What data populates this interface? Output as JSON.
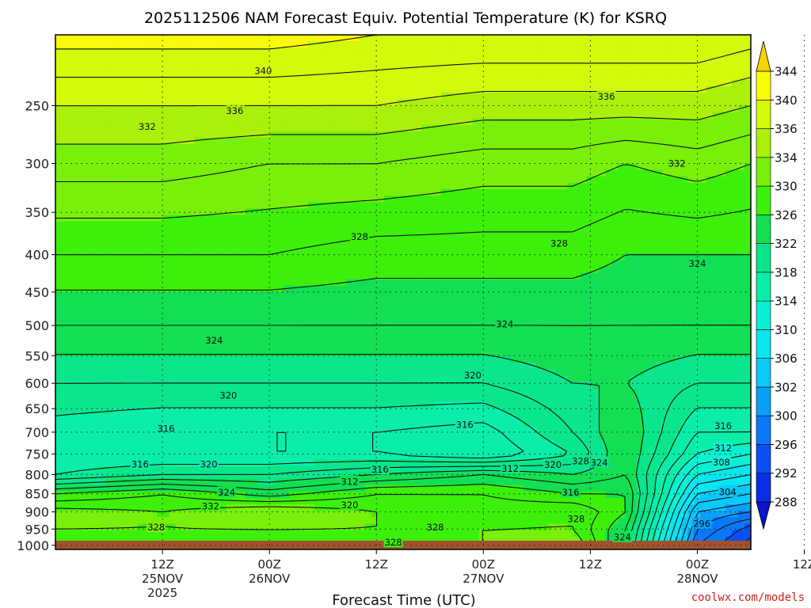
{
  "colors": {
    "ground": "#a0522d",
    "watermark": "#cc2222",
    "contour": "#111111"
  },
  "watermark": "coolwx.com/models",
  "chart_data": {
    "type": "heatmap",
    "title": "2025112506 NAM Forecast Equiv. Potential Temperature (K) for KSRQ",
    "xlabel": "Forecast Time (UTC)",
    "ylabel": "",
    "y_axis": {
      "range": [
        200,
        1013
      ],
      "inverted": true,
      "ticks": [
        250,
        300,
        350,
        400,
        450,
        500,
        550,
        600,
        650,
        700,
        750,
        800,
        850,
        900,
        950,
        1000
      ]
    },
    "x_axis": {
      "range_hours": [
        -6,
        72
      ],
      "ticks": [
        {
          "hour": 6,
          "lines": [
            "12Z",
            "25NOV",
            "2025"
          ]
        },
        {
          "hour": 18,
          "lines": [
            "00Z",
            "26NOV"
          ]
        },
        {
          "hour": 30,
          "lines": [
            "12Z",
            ""
          ]
        },
        {
          "hour": 42,
          "lines": [
            "00Z",
            "27NOV"
          ]
        },
        {
          "hour": 54,
          "lines": [
            "12Z",
            ""
          ]
        },
        {
          "hour": 66,
          "lines": [
            "00Z",
            "28NOV"
          ]
        },
        {
          "hour": 78,
          "lines": [
            "12Z",
            ""
          ]
        }
      ]
    },
    "colorbar": {
      "levels": [
        288,
        292,
        296,
        300,
        302,
        306,
        310,
        314,
        318,
        322,
        326,
        330,
        334,
        336,
        340,
        344
      ],
      "colors": [
        "#0a14c8",
        "#0a2ee6",
        "#0a50f5",
        "#0a78fa",
        "#0aa0fa",
        "#0ac8fa",
        "#0ae6f0",
        "#0af0d2",
        "#0aeeaa",
        "#0ae68c",
        "#12e052",
        "#3cf00a",
        "#78f00a",
        "#aaf00a",
        "#d2fa0a",
        "#fafa0a",
        "#fad200"
      ]
    },
    "profiles": [
      {
        "hour": -6,
        "p": [
          1000,
          950,
          900,
          850,
          800,
          750,
          700,
          600,
          500,
          400,
          300,
          250,
          200
        ],
        "theta": [
          329,
          330,
          331,
          326,
          318,
          316,
          317,
          320,
          324,
          328,
          333,
          336,
          341
        ]
      },
      {
        "hour": 6,
        "p": [
          1000,
          950,
          900,
          850,
          800,
          750,
          700,
          600,
          500,
          400,
          300,
          250,
          200
        ],
        "theta": [
          329,
          330,
          330,
          328,
          320,
          316,
          316,
          320,
          324,
          328,
          333,
          336,
          341
        ]
      },
      {
        "hour": 18,
        "p": [
          1000,
          950,
          900,
          850,
          800,
          750,
          700,
          600,
          500,
          400,
          300,
          250,
          200
        ],
        "theta": [
          329,
          330,
          332,
          325,
          320,
          316,
          316,
          320,
          324,
          328,
          332,
          336,
          341
        ]
      },
      {
        "hour": 30,
        "p": [
          1000,
          950,
          900,
          850,
          800,
          750,
          700,
          600,
          500,
          400,
          300,
          250,
          200
        ],
        "theta": [
          329,
          330,
          330,
          328,
          322,
          316,
          316,
          320,
          324,
          327,
          332,
          336,
          340
        ]
      },
      {
        "hour": 42,
        "p": [
          1000,
          950,
          900,
          850,
          800,
          750,
          700,
          600,
          500,
          400,
          300,
          250,
          200
        ],
        "theta": [
          330,
          330,
          329,
          328,
          324,
          314,
          315,
          320,
          324,
          327,
          331,
          335,
          340
        ]
      },
      {
        "hour": 52,
        "p": [
          1000,
          950,
          900,
          850,
          800,
          750,
          700,
          600,
          500,
          400,
          300,
          250,
          200
        ],
        "theta": [
          332,
          330,
          330,
          326,
          322,
          318,
          320,
          322,
          324,
          327,
          331,
          335,
          340
        ]
      },
      {
        "hour": 58,
        "p": [
          1000,
          950,
          900,
          850,
          800,
          750,
          700,
          600,
          500,
          400,
          300,
          250,
          200
        ],
        "theta": [
          323,
          324,
          326,
          326,
          324,
          324,
          324,
          322,
          324,
          326,
          330,
          335,
          340
        ]
      },
      {
        "hour": 66,
        "p": [
          1000,
          950,
          900,
          850,
          800,
          750,
          700,
          600,
          500,
          400,
          300,
          250,
          200
        ],
        "theta": [
          298,
          300,
          302,
          306,
          310,
          314,
          316,
          320,
          324,
          326,
          331,
          335,
          340
        ]
      },
      {
        "hour": 72,
        "p": [
          1000,
          950,
          900,
          850,
          800,
          750,
          700,
          600,
          500,
          400,
          300,
          250,
          200
        ],
        "theta": [
          293,
          295,
          300,
          304,
          308,
          312,
          316,
          320,
          324,
          326,
          330,
          334,
          339
        ]
      }
    ],
    "contour_labels": [
      {
        "text": "340",
        "hour": 17.3,
        "p": 224
      },
      {
        "text": "336",
        "hour": 14.1,
        "p": 254
      },
      {
        "text": "336",
        "hour": 55.8,
        "p": 243
      },
      {
        "text": "332",
        "hour": 4.3,
        "p": 267
      },
      {
        "text": "332",
        "hour": 63.7,
        "p": 300
      },
      {
        "text": "328",
        "hour": 28.1,
        "p": 378
      },
      {
        "text": "328",
        "hour": 50.5,
        "p": 386
      },
      {
        "text": "324",
        "hour": 66.0,
        "p": 411
      },
      {
        "text": "324",
        "hour": 11.8,
        "p": 524
      },
      {
        "text": "324",
        "hour": 44.4,
        "p": 498
      },
      {
        "text": "320",
        "hour": 40.8,
        "p": 585
      },
      {
        "text": "320",
        "hour": 13.4,
        "p": 623
      },
      {
        "text": "316",
        "hour": 6.4,
        "p": 692
      },
      {
        "text": "316",
        "hour": 39.9,
        "p": 683
      },
      {
        "text": "316",
        "hour": 68.9,
        "p": 686
      },
      {
        "text": "312",
        "hour": 68.9,
        "p": 736
      },
      {
        "text": "308",
        "hour": 68.7,
        "p": 769
      },
      {
        "text": "304",
        "hour": 69.4,
        "p": 845
      },
      {
        "text": "296",
        "hour": 66.5,
        "p": 934
      },
      {
        "text": "316",
        "hour": 3.5,
        "p": 774
      },
      {
        "text": "320",
        "hour": 11.2,
        "p": 774
      },
      {
        "text": "324",
        "hour": 13.2,
        "p": 846
      },
      {
        "text": "332",
        "hour": 11.4,
        "p": 884
      },
      {
        "text": "328",
        "hour": 5.3,
        "p": 944
      },
      {
        "text": "316",
        "hour": 30.4,
        "p": 787
      },
      {
        "text": "312",
        "hour": 27.0,
        "p": 818
      },
      {
        "text": "320",
        "hour": 27.0,
        "p": 880
      },
      {
        "text": "312",
        "hour": 45.0,
        "p": 785
      },
      {
        "text": "320",
        "hour": 49.8,
        "p": 775
      },
      {
        "text": "328",
        "hour": 52.9,
        "p": 767
      },
      {
        "text": "324",
        "hour": 55.0,
        "p": 770
      },
      {
        "text": "316",
        "hour": 51.8,
        "p": 846
      },
      {
        "text": "328",
        "hour": 52.4,
        "p": 920
      },
      {
        "text": "328",
        "hour": 36.6,
        "p": 944
      },
      {
        "text": "328",
        "hour": 31.9,
        "p": 990
      },
      {
        "text": "324",
        "hour": 57.6,
        "p": 974
      }
    ]
  }
}
